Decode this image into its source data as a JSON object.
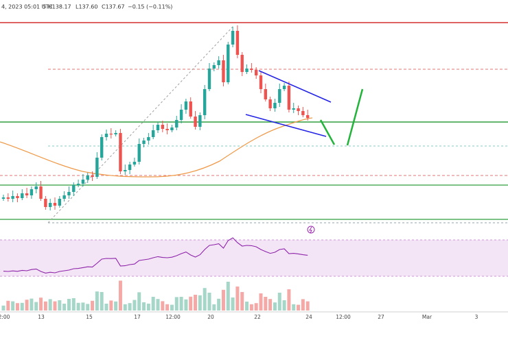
{
  "header": {
    "date": "4, 2023 05:01 UTC",
    "ohlc": [
      "5 H138.17",
      "L137.60",
      "C137.67",
      "−0.15 (−0.11%)"
    ]
  },
  "x_axis": {
    "labels": [
      "2:00",
      "13",
      "15",
      "17",
      "12:00",
      "20",
      "22",
      "24",
      "12:00",
      "27",
      "Mar",
      "3"
    ]
  }
}
